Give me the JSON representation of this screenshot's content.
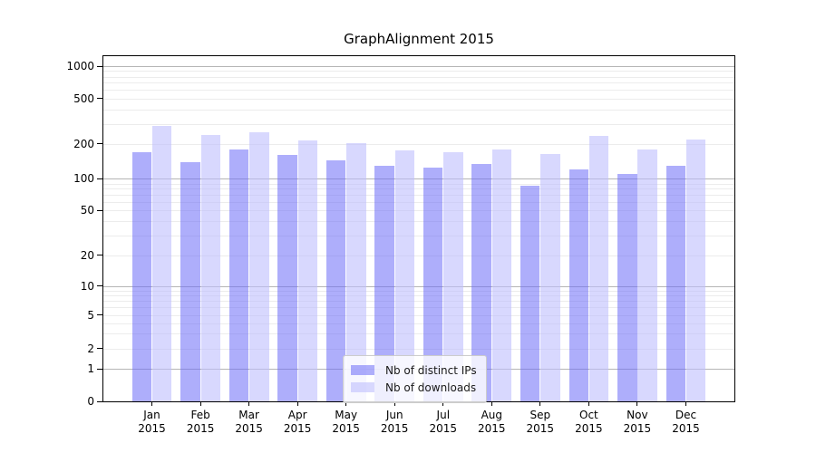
{
  "chart_data": {
    "type": "bar",
    "title": "GraphAlignment 2015",
    "categories": [
      "Jan 2015",
      "Feb 2015",
      "Mar 2015",
      "Apr 2015",
      "May 2015",
      "Jun 2015",
      "Jul 2015",
      "Aug 2015",
      "Sep 2015",
      "Oct 2015",
      "Nov 2015",
      "Dec 2015"
    ],
    "series": [
      {
        "name": "Nb of distinct IPs",
        "color": "rgba(108,108,247,0.55)",
        "values": [
          170,
          140,
          180,
          160,
          145,
          130,
          125,
          135,
          85,
          120,
          110,
          130
        ]
      },
      {
        "name": "Nb of downloads",
        "color": "rgba(190,190,253,0.6)",
        "values": [
          290,
          240,
          255,
          215,
          205,
          175,
          170,
          180,
          165,
          235,
          180,
          220
        ]
      }
    ],
    "yscale": "symlog",
    "yticks": [
      0,
      1,
      2,
      5,
      10,
      20,
      50,
      100,
      200,
      500,
      1000
    ],
    "ylim": [
      0,
      1100
    ],
    "xlabel": "",
    "ylabel": "",
    "grid": "horizontal, major and minor log gridlines",
    "legend_position": "lower center inside plot"
  },
  "colors": {
    "major_grid": "#b5b5b5",
    "minor_grid": "#ececec",
    "axis": "#000000",
    "background": "#ffffff"
  }
}
